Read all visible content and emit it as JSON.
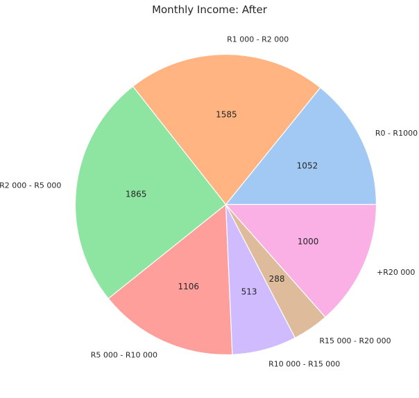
{
  "chart_data": {
    "type": "pie",
    "title": "Monthly Income: After",
    "start_angle_deg": 0,
    "direction": "counterclockwise",
    "slices": [
      {
        "label": "R0 - R1000",
        "value": 1052,
        "color": "#a1c9f4"
      },
      {
        "label": "R1 000 - R2 000",
        "value": 1585,
        "color": "#ffb482"
      },
      {
        "label": "R2 000 - R5 000",
        "value": 1865,
        "color": "#8de5a1"
      },
      {
        "label": "R5 000 - R10 000",
        "value": 1106,
        "color": "#ff9f9b"
      },
      {
        "label": "R10 000 - R15 000",
        "value": 513,
        "color": "#d0bbff"
      },
      {
        "label": "R15 000 - R20 000",
        "value": 288,
        "color": "#debb9b"
      },
      {
        "label": "+R20 000",
        "value": 1000,
        "color": "#fab0e4"
      }
    ]
  }
}
